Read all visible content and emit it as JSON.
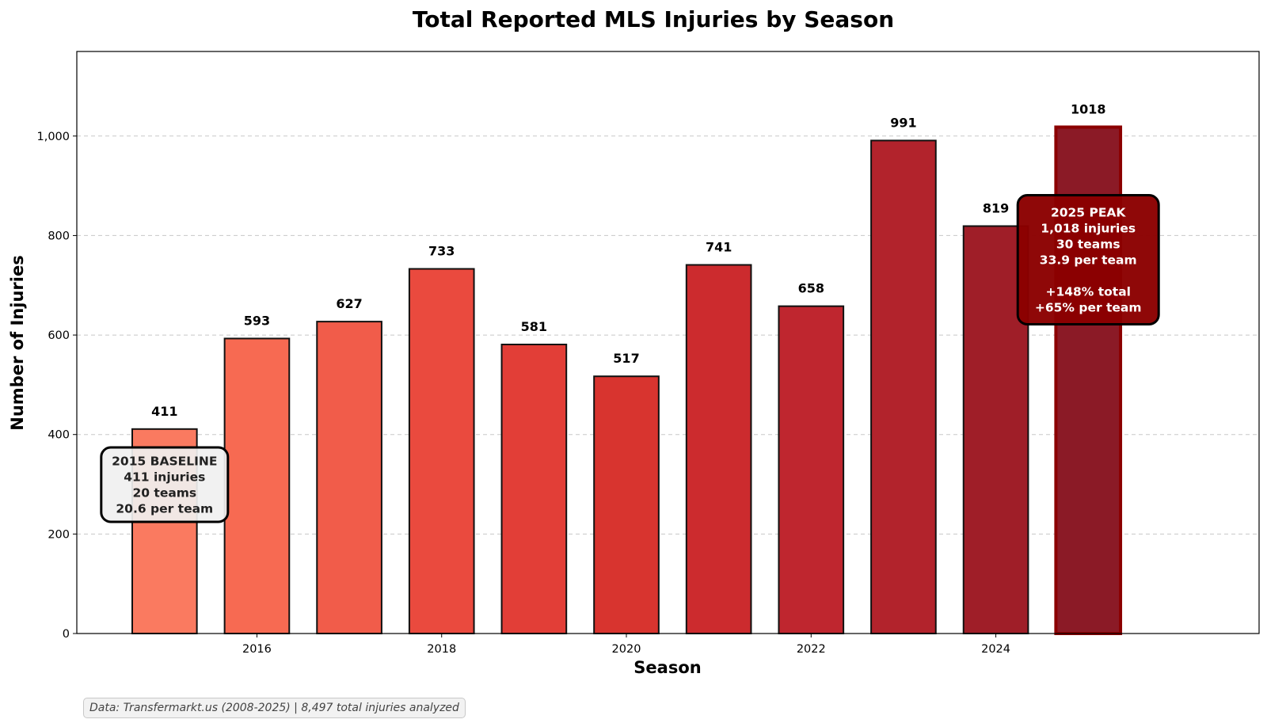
{
  "chart_data": {
    "type": "bar",
    "title": "Total Reported MLS Injuries by Season",
    "xlabel": "Season",
    "ylabel": "Number of Injuries",
    "categories": [
      "2015",
      "2016",
      "2017",
      "2018",
      "2019",
      "2020",
      "2021",
      "2022",
      "2023",
      "2024",
      "2025"
    ],
    "values": [
      411,
      593,
      627,
      733,
      581,
      517,
      741,
      658,
      991,
      819,
      1018
    ],
    "value_labels": [
      "411",
      "593",
      "627",
      "733",
      "581",
      "517",
      "741",
      "658",
      "991",
      "819",
      "1018"
    ],
    "bar_colors": [
      "#fa7a60",
      "#f76a52",
      "#f15c4a",
      "#ea4a3e",
      "#e23e37",
      "#d8342f",
      "#cc2b2e",
      "#bf262f",
      "#b2232c",
      "#9f1e28",
      "#8b1a26"
    ],
    "highlight_edge_color": "#8b0000",
    "ylim": [
      0,
      1170
    ],
    "xlim": [
      2014.05,
      2026.85
    ],
    "yticks": [
      0,
      200,
      400,
      600,
      800,
      1000
    ],
    "ytick_labels": [
      "0",
      "200",
      "400",
      "600",
      "800",
      "1,000"
    ],
    "xticks": [
      2016,
      2018,
      2020,
      2022,
      2024
    ],
    "xtick_labels": [
      "2016",
      "2018",
      "2020",
      "2022",
      "2024"
    ],
    "grid": "y-dashed",
    "annotations": [
      {
        "name": "baseline",
        "season": 2015,
        "lines": [
          "2015 BASELINE",
          "411 injuries",
          "20 teams",
          "20.6 per team"
        ],
        "bg": "#f0f0f0",
        "text_color": "#222222"
      },
      {
        "name": "peak",
        "season": 2025,
        "lines": [
          "2025 PEAK",
          "1,018 injuries",
          "30 teams",
          "33.9 per team",
          "",
          "+148% total",
          "+65% per team"
        ],
        "bg": "#8b0000",
        "text_color": "#ffffff"
      }
    ]
  },
  "footer": {
    "source": "Data: Transfermarkt.us (2008-2025) | 8,497 total injuries analyzed"
  }
}
